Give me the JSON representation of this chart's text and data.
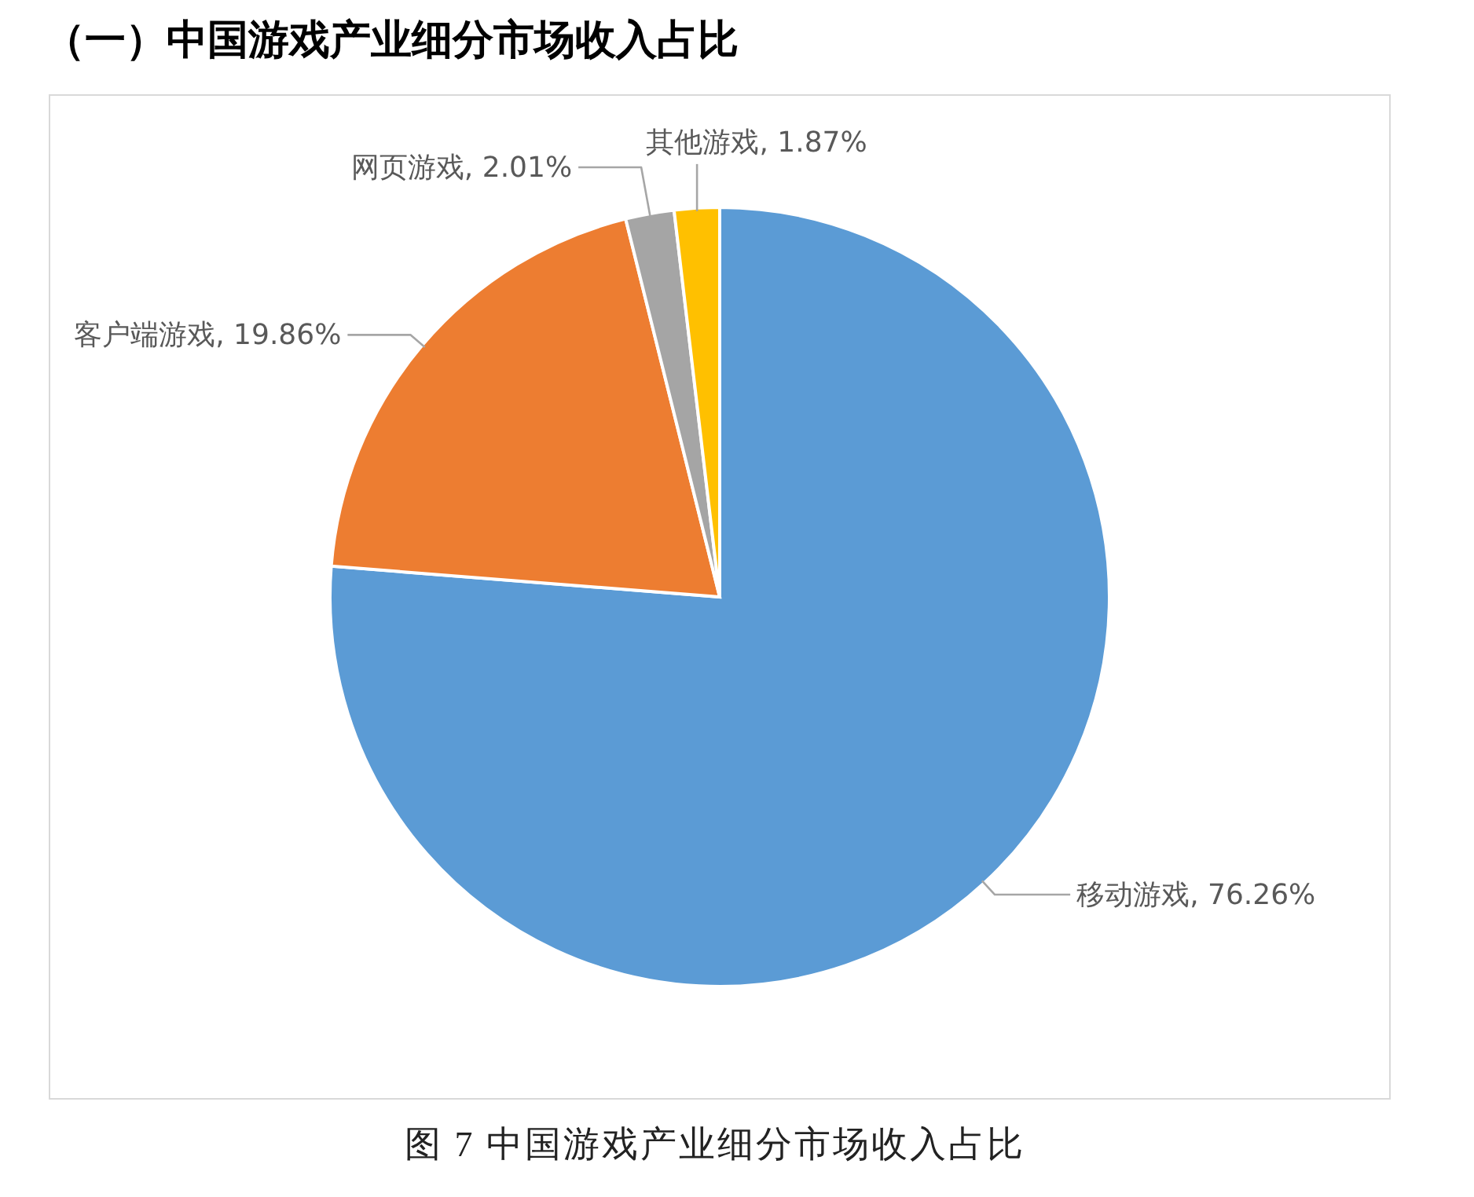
{
  "chart_data": {
    "type": "pie",
    "title": "（一）中国游戏产业细分市场收入占比",
    "categories": [
      "移动游戏",
      "客户端游戏",
      "网页游戏",
      "其他游戏"
    ],
    "values": [
      76.26,
      19.86,
      2.01,
      1.87
    ],
    "colors": [
      "#5b9bd5",
      "#ed7d31",
      "#a5a5a5",
      "#ffc000"
    ],
    "value_labels": [
      "76.26%",
      "19.86%",
      "2.01%",
      "1.87%"
    ],
    "annotations": [
      "图 7 中国游戏产业细分市场收入占比"
    ]
  }
}
